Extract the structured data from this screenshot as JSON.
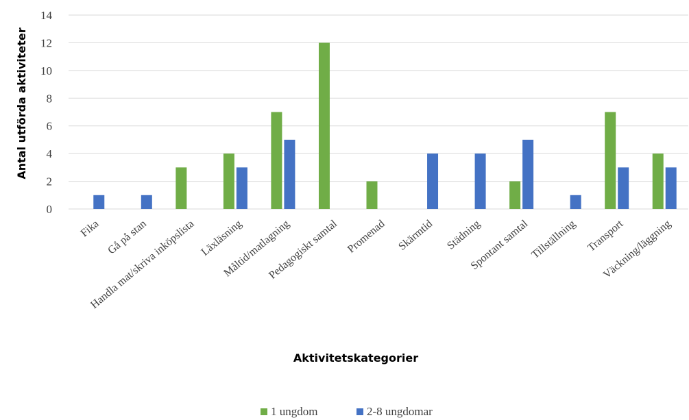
{
  "chart_data": {
    "type": "bar",
    "title": "",
    "ylabel": "Antal utförda aktiviteter",
    "xlabel": "Aktivitetskategorier",
    "ylim": [
      0,
      14
    ],
    "yticks": [
      0,
      2,
      4,
      6,
      8,
      10,
      12,
      14
    ],
    "grid": true,
    "legend_position": "bottom",
    "categories": [
      "Fika",
      "Gå på stan",
      "Handla mat/skriva inköpslista",
      "Läxläsning",
      "Måltid/matlagning",
      "Pedagogiskt samtal",
      "Promenad",
      "Skärmtid",
      "Städning",
      "Spontant samtal",
      "Tillställning",
      "Transport",
      "Väckning/läggning"
    ],
    "series": [
      {
        "name": "1 ungdom",
        "color": "#70ad47",
        "values": [
          0,
          0,
          3,
          4,
          7,
          12,
          2,
          0,
          0,
          2,
          0,
          7,
          4
        ]
      },
      {
        "name": "2-8 ungdomar",
        "color": "#4472c4",
        "values": [
          1,
          1,
          0,
          3,
          5,
          0,
          0,
          4,
          4,
          5,
          1,
          3,
          3
        ]
      }
    ]
  }
}
